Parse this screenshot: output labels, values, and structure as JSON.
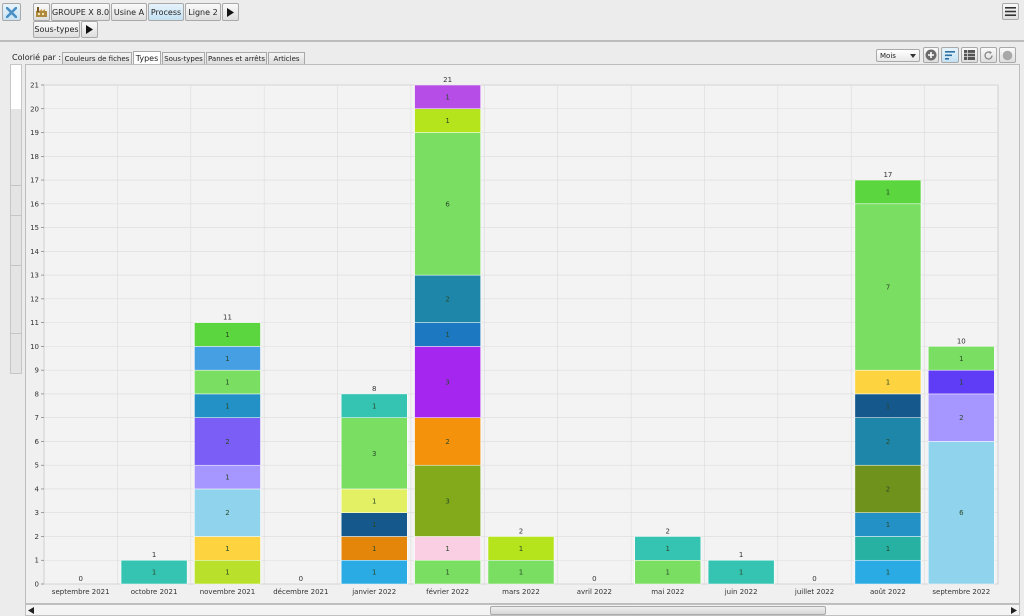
{
  "breadcrumb": {
    "items": [
      "GROUPE X 8.0",
      "Usine A",
      "Process",
      "Ligne 2"
    ],
    "sub_item": "Sous-types"
  },
  "coloring": {
    "label": "Colorié par :",
    "tabs": [
      "Couleurs de fiches",
      "Types",
      "Sous-types",
      "Pannes et arrêts",
      "Articles"
    ],
    "selected_tab": "Types"
  },
  "period_select": {
    "value": "Mois"
  },
  "chart_data": {
    "type": "bar",
    "stacked": true,
    "categories": [
      "septembre 2021",
      "octobre 2021",
      "novembre 2021",
      "décembre 2021",
      "janvier 2022",
      "février 2022",
      "mars 2022",
      "avril 2022",
      "mai 2022",
      "juin 2022",
      "juillet 2022",
      "août 2022",
      "septembre 2022"
    ],
    "totals": [
      0,
      1,
      11,
      0,
      8,
      21,
      2,
      0,
      2,
      1,
      0,
      17,
      10
    ],
    "stacks": [
      [],
      [
        {
          "value": 1,
          "label": "1",
          "color": "#35c4b2"
        }
      ],
      [
        {
          "value": 1,
          "label": "1",
          "color": "#b9e02a"
        },
        {
          "value": 1,
          "label": "1",
          "color": "#fdd43f"
        },
        {
          "value": 2,
          "label": "2",
          "color": "#8fd3ec"
        },
        {
          "value": 1,
          "label": "1",
          "color": "#a696ff"
        },
        {
          "value": 2,
          "label": "2",
          "color": "#7b5ef5"
        },
        {
          "value": 1,
          "label": "1",
          "color": "#2491c6"
        },
        {
          "value": 1,
          "label": "1",
          "color": "#7ade62"
        },
        {
          "value": 1,
          "label": "1",
          "color": "#479fe3"
        },
        {
          "value": 1,
          "label": "1",
          "color": "#5cd63e"
        }
      ],
      [],
      [
        {
          "value": 1,
          "label": "1",
          "color": "#2aabe3"
        },
        {
          "value": 1,
          "label": "1",
          "color": "#e3860a"
        },
        {
          "value": 1,
          "label": "1",
          "color": "#15588c"
        },
        {
          "value": 1,
          "label": "1",
          "color": "#e3f064"
        },
        {
          "value": 3,
          "label": "3",
          "color": "#7ade62"
        },
        {
          "value": 1,
          "label": "1",
          "color": "#35c4b2"
        }
      ],
      [
        {
          "value": 1,
          "label": "1",
          "color": "#7ade62"
        },
        {
          "value": 1,
          "label": "1",
          "color": "#fbcfe3"
        },
        {
          "value": 3,
          "label": "3",
          "color": "#82aa1a"
        },
        {
          "value": 2,
          "label": "2",
          "color": "#f5920b"
        },
        {
          "value": 3,
          "label": "3",
          "color": "#a526ee"
        },
        {
          "value": 1,
          "label": "1",
          "color": "#1c78c0"
        },
        {
          "value": 2,
          "label": "2",
          "color": "#1e87a9"
        },
        {
          "value": 6,
          "label": "6",
          "color": "#7ade62"
        },
        {
          "value": 1,
          "label": "1",
          "color": "#b5e31c"
        },
        {
          "value": 1,
          "label": "1",
          "color": "#b64de6"
        }
      ],
      [
        {
          "value": 1,
          "label": "1",
          "color": "#7ade62"
        },
        {
          "value": 1,
          "label": "1",
          "color": "#b5e31c"
        }
      ],
      [],
      [
        {
          "value": 1,
          "label": "1",
          "color": "#7ade62"
        },
        {
          "value": 1,
          "label": "1",
          "color": "#35c4b2"
        }
      ],
      [
        {
          "value": 1,
          "label": "1",
          "color": "#35c4b2"
        }
      ],
      [],
      [
        {
          "value": 1,
          "label": "1",
          "color": "#2aabe3"
        },
        {
          "value": 1,
          "label": "1",
          "color": "#27b1a2"
        },
        {
          "value": 1,
          "label": "1",
          "color": "#2491c6"
        },
        {
          "value": 2,
          "label": "2",
          "color": "#6f921c"
        },
        {
          "value": 2,
          "label": "2",
          "color": "#1e87a9"
        },
        {
          "value": 1,
          "label": "1",
          "color": "#15588c"
        },
        {
          "value": 1,
          "label": "1",
          "color": "#fdd43f"
        },
        {
          "value": 7,
          "label": "7",
          "color": "#7ade62"
        },
        {
          "value": 1,
          "label": "1",
          "color": "#5cd63e"
        }
      ],
      [
        {
          "value": 6,
          "label": "6",
          "color": "#8fd3ec"
        },
        {
          "value": 2,
          "label": "2",
          "color": "#a696ff"
        },
        {
          "value": 1,
          "label": "1",
          "color": "#5f3cf5"
        },
        {
          "value": 1,
          "label": "1",
          "color": "#7ade62"
        }
      ]
    ],
    "ylim": [
      0,
      21
    ],
    "yticks": [
      0,
      1,
      2,
      3,
      4,
      5,
      6,
      7,
      8,
      9,
      10,
      11,
      12,
      13,
      14,
      15,
      16,
      17,
      18,
      19,
      20,
      21
    ],
    "grid": true
  }
}
